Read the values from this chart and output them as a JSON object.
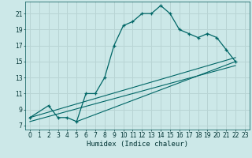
{
  "title": "",
  "xlabel": "Humidex (Indice chaleur)",
  "bg_color": "#cce8e8",
  "grid_color": "#b8d4d4",
  "line_color": "#006666",
  "xlim": [
    -0.5,
    23.5
  ],
  "ylim": [
    6.5,
    22.5
  ],
  "xticks": [
    0,
    1,
    2,
    3,
    4,
    5,
    6,
    7,
    8,
    9,
    10,
    11,
    12,
    13,
    14,
    15,
    16,
    17,
    18,
    19,
    20,
    21,
    22,
    23
  ],
  "yticks": [
    7,
    9,
    11,
    13,
    15,
    17,
    19,
    21
  ],
  "curve1_x": [
    0,
    2,
    3,
    4,
    5,
    6,
    7,
    8,
    9,
    10,
    11,
    12,
    13,
    14,
    15,
    16,
    17,
    18,
    19,
    20,
    21,
    22
  ],
  "curve1_y": [
    8,
    9.5,
    8,
    8,
    7.5,
    11,
    11,
    13,
    17,
    19.5,
    20,
    21,
    21,
    22,
    21,
    19,
    18.5,
    18,
    18.5,
    18,
    16.5,
    15
  ],
  "line1_x": [
    0,
    22
  ],
  "line1_y": [
    8,
    15.5
  ],
  "line2_x": [
    0,
    22
  ],
  "line2_y": [
    7.5,
    14.5
  ],
  "line3_x": [
    5,
    22
  ],
  "line3_y": [
    7.5,
    15
  ]
}
